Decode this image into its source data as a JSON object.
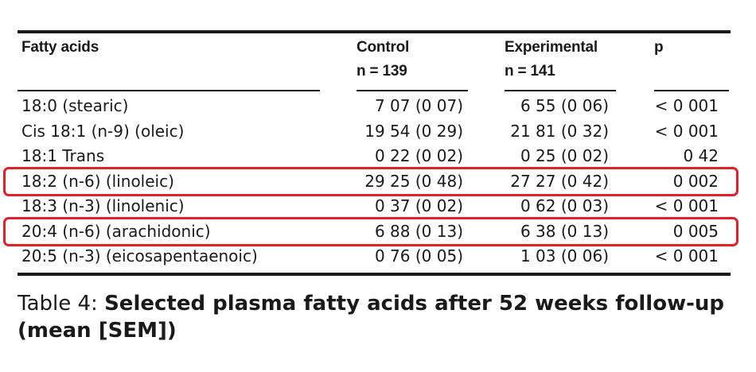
{
  "table": {
    "headers": {
      "fatty_acids": "Fatty acids",
      "control": "Control",
      "control_n": "n = 139",
      "experimental": "Experimental",
      "experimental_n": "n = 141",
      "p": "p"
    },
    "rows": [
      {
        "name": "18:0 (stearic)",
        "control": "7 07 (0 07)",
        "experimental": "6 55 (0 06)",
        "p": "< 0 001",
        "highlighted": false
      },
      {
        "name": "Cis 18:1 (n-9) (oleic)",
        "control": "19 54 (0 29)",
        "experimental": "21 81 (0 32)",
        "p": "< 0 001",
        "highlighted": false
      },
      {
        "name": "18:1 Trans",
        "control": "0 22 (0 02)",
        "experimental": "0 25 (0 02)",
        "p": "0 42",
        "highlighted": false
      },
      {
        "name": "18:2 (n-6) (linoleic)",
        "control": "29 25 (0 48)",
        "experimental": "27 27 (0 42)",
        "p": "0 002",
        "highlighted": true
      },
      {
        "name": "18:3 (n-3) (linolenic)",
        "control": "0 37 (0 02)",
        "experimental": "0 62 (0 03)",
        "p": "< 0 001",
        "highlighted": false
      },
      {
        "name": "20:4 (n-6) (arachidonic)",
        "control": "6 88 (0 13)",
        "experimental": "6 38 (0 13)",
        "p": "0 005",
        "highlighted": true
      },
      {
        "name": "20:5 (n-3) (eicosapentaenoic)",
        "control": "0 76 (0 05)",
        "experimental": "1 03 (0 06)",
        "p": "< 0 001",
        "highlighted": false
      }
    ]
  },
  "caption": {
    "lead": "Table 4: ",
    "title": "Selected plasma fatty acids after 52 weeks follow-up (mean [SEM])"
  },
  "colors": {
    "highlight": "#e0202a",
    "text": "#1a1a1a"
  }
}
